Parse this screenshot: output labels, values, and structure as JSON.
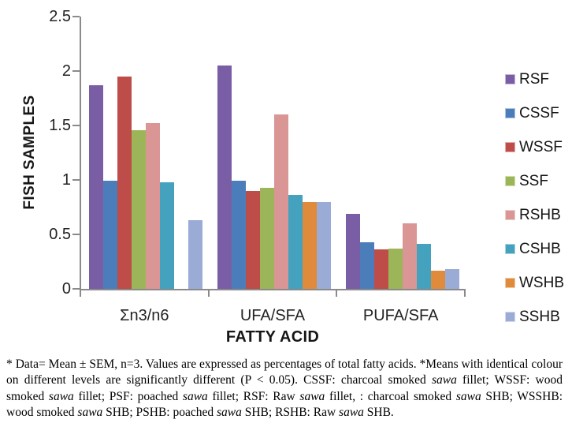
{
  "chart_data": {
    "type": "bar",
    "xlabel": "FATTY ACID",
    "ylabel": "FISH SAMPLES",
    "ylim": [
      0,
      2.5
    ],
    "yticks": [
      0,
      0.5,
      1,
      1.5,
      2,
      2.5
    ],
    "ytick_labels": [
      "0",
      "0.5",
      "1",
      "1.5",
      "2",
      "2.5"
    ],
    "categories": [
      "Σn3/n6",
      "UFA/SFA",
      "PUFA/SFA"
    ],
    "series": [
      {
        "name": "RSF",
        "color": "#7a5ea5",
        "values": [
          1.87,
          2.05,
          0.69
        ]
      },
      {
        "name": "CSSF",
        "color": "#4c7dbb",
        "values": [
          0.99,
          0.99,
          0.43
        ]
      },
      {
        "name": "WSSF",
        "color": "#be4c48",
        "values": [
          1.95,
          0.9,
          0.36
        ]
      },
      {
        "name": "SSF",
        "color": "#9bb558",
        "values": [
          1.46,
          0.93,
          0.37
        ]
      },
      {
        "name": "RSHB",
        "color": "#d99694",
        "values": [
          1.52,
          1.6,
          0.6
        ]
      },
      {
        "name": "CSHB",
        "color": "#44a2be",
        "values": [
          0.98,
          0.86,
          0.41
        ]
      },
      {
        "name": "WSHB",
        "color": "#e08a3c",
        "values": [
          0.0,
          0.8,
          0.17
        ]
      },
      {
        "name": "SSHB",
        "color": "#9aacd5",
        "values": [
          0.63,
          0.8,
          0.18
        ]
      }
    ],
    "legend_position": "right",
    "grid": false,
    "axis_color": "#8a8a8a"
  },
  "caption": {
    "segments": [
      {
        "t": "* Data= Mean ± SEM, n=3. Values are expressed as percentages of total fatty acids. *Means with identical colour on different levels are significantly different (P < 0.05). CSSF: charcoal smoked ",
        "i": false
      },
      {
        "t": "sawa",
        "i": true
      },
      {
        "t": " fillet; WSSF: wood smoked ",
        "i": false
      },
      {
        "t": "sawa",
        "i": true
      },
      {
        "t": " fillet; PSF: poached ",
        "i": false
      },
      {
        "t": "sawa",
        "i": true
      },
      {
        "t": " fillet; RSF: Raw ",
        "i": false
      },
      {
        "t": "sawa",
        "i": true
      },
      {
        "t": " fillet, : charcoal smoked ",
        "i": false
      },
      {
        "t": "sawa",
        "i": true
      },
      {
        "t": " SHB; WSSHB: wood smoked ",
        "i": false
      },
      {
        "t": "sawa",
        "i": true
      },
      {
        "t": " SHB; PSHB: poached ",
        "i": false
      },
      {
        "t": "sawa",
        "i": true
      },
      {
        "t": " SHB; RSHB: Raw ",
        "i": false
      },
      {
        "t": "sawa",
        "i": true
      },
      {
        "t": " SHB.",
        "i": false
      }
    ]
  }
}
